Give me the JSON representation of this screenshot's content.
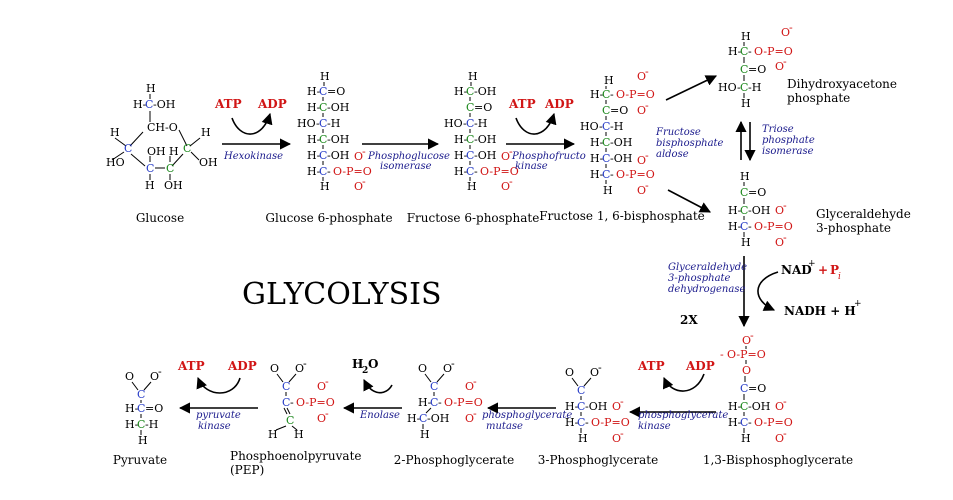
{
  "title": "GLYCOLYSIS",
  "colors": {
    "red": "#d11616",
    "blue": "#2a3fc8",
    "green": "#1f8a1f",
    "black": "#000000",
    "enzyme": "#1a1a8c"
  },
  "molecules": [
    {
      "id": "glucose",
      "name": "Glucose"
    },
    {
      "id": "g6p",
      "name": "Glucose 6-phosphate"
    },
    {
      "id": "f6p",
      "name": "Fructose 6-phosphate"
    },
    {
      "id": "f16bp",
      "name": "Fructose 1, 6-bisphosphate"
    },
    {
      "id": "dhap",
      "name": "Dihydroxyacetone phosphate",
      "lines": [
        "Dihydroxyacetone",
        "phosphate"
      ]
    },
    {
      "id": "g3p",
      "name": "Glyceraldehyde 3-phosphate",
      "lines": [
        "Glyceraldehyde",
        "3-phosphate"
      ]
    },
    {
      "id": "bpg13",
      "name": "1,3-Bisphosphoglycerate"
    },
    {
      "id": "pg3",
      "name": "3-Phosphoglycerate"
    },
    {
      "id": "pg2",
      "name": "2-Phosphoglycerate"
    },
    {
      "id": "pep",
      "name": "Phosphoenolpyruvate (PEP)",
      "lines": [
        "Phosphoenolpyruvate",
        "(PEP)"
      ]
    },
    {
      "id": "pyruvate",
      "name": "Pyruvate"
    }
  ],
  "enzymes": {
    "hexokinase": "Hexokinase",
    "phosphoglucose_isomerase": [
      "Phosphoglucose",
      "isomerase"
    ],
    "phosphofructokinase": [
      "Phosphofructo",
      "kinase"
    ],
    "aldolase": [
      "Fructose",
      "bisphosphate",
      "aldose"
    ],
    "triose_isomerase": [
      "Triose",
      "phosphate",
      "isomerase"
    ],
    "g3p_dehydrogenase": [
      "Glyceraldehyde",
      "3-phosphate",
      "dehydrogenase"
    ],
    "phosphoglycerate_kinase": [
      "phosphoglycerate",
      "kinase"
    ],
    "phosphoglycerate_mutase": [
      "phosphoglycerate",
      "mutase"
    ],
    "enolase": "Enolase",
    "pyruvate_kinase": [
      "pyruvate",
      "kinase"
    ]
  },
  "cofactors": {
    "atp": "ATP",
    "adp": "ADP",
    "nad_plus": "NAD",
    "pi": "P",
    "nadh": "NADH + H",
    "water": "H",
    "two_x": "2X"
  }
}
